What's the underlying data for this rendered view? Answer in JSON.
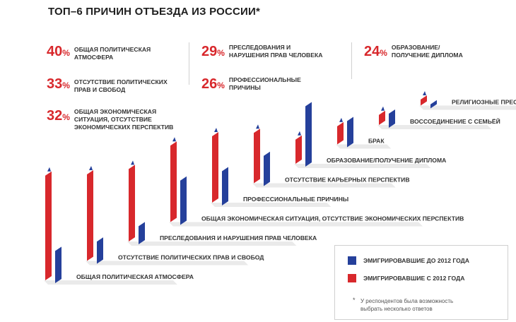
{
  "title": "ТОП–6 ПРИЧИН ОТЪЕЗДА ИЗ РОССИИ*",
  "top6": [
    {
      "pct": "40",
      "label": "ОБЩАЯ ПОЛИТИЧЕСКАЯ\nАТМОСФЕРА"
    },
    {
      "pct": "33",
      "label": "ОТСУТСТВИЕ ПОЛИТИЧЕСКИХ\nПРАВ И СВОБОД"
    },
    {
      "pct": "32",
      "label": "ОБЩАЯ ЭКОНОМИЧЕСКАЯ\nСИТУАЦИЯ, ОТСУТСТВИЕ\nЭКОНОМИЧЕСКИХ ПЕРСПЕКТИВ"
    },
    {
      "pct": "29",
      "label": "ПРЕСЛЕДОВАНИЯ И\nНАРУШЕНИЯ ПРАВ ЧЕЛОВЕКА"
    },
    {
      "pct": "26",
      "label": "ПРОФЕССИОНАЛЬНЫЕ\nПРИЧИНЫ"
    },
    {
      "pct": "24",
      "label": "ОБРАЗОВАНИЕ/\nПОЛУЧЕНИЕ ДИПЛОМА"
    }
  ],
  "pct_sign": "%",
  "legend": {
    "before_2012": "ЭМИГРИРОВАВШИЕ ДО 2012 ГОДА",
    "after_2012": "ЭМИГРИРОВАВШИЕ С 2012 ГОДА"
  },
  "note_star": "*",
  "note": "У респондентов была возможность\nвыбрать несколько ответов",
  "colors": {
    "blue": "#25409b",
    "red": "#d8282c",
    "title": "#1e1e1e"
  },
  "chart_data": {
    "type": "bar",
    "categories": [
      "ОБЩАЯ ПОЛИТИЧЕСКАЯ АТМОСФЕРА",
      "ОТСУТСТВИЕ ПОЛИТИЧЕСКИХ ПРАВ И СВОБОД",
      "ПРЕСЛЕДОВАНИЯ И НАРУШЕНИЯ ПРАВ ЧЕЛОВЕКА",
      "ОБЩАЯ ЭКОНОМИЧЕСКАЯ СИТУАЦИЯ, ОТСУТСТВИЕ ЭКОНОМИЧЕСКИХ ПЕРСПЕКТИВ",
      "ПРОФЕССИОНАЛЬНЫЕ ПРИЧИНЫ",
      "ОТСУТСТВИЕ КАРЬЕРНЫХ ПЕРСПЕКТИВ",
      "ОБРАЗОВАНИЕ/ПОЛУЧЕНИЕ ДИПЛОМА",
      "БРАК",
      "ВОССОЕДИНЕНИЕ С СЕМЬЁЙ",
      "РЕЛИГИОЗНЫЕ ПРЕСЛЕДОВАНИЯ"
    ],
    "series": [
      {
        "name": "ЭМИГРИРОВАВШИЕ ДО 2012 ГОДА",
        "values": [
          16,
          11,
          9,
          22,
          17,
          15,
          30,
          13,
          7,
          2
        ]
      },
      {
        "name": "ЭМИГРИРОВАВШИЕ С 2012 ГОДА",
        "values": [
          52,
          43,
          36,
          38,
          33,
          25,
          12,
          9,
          5,
          3
        ]
      }
    ]
  }
}
